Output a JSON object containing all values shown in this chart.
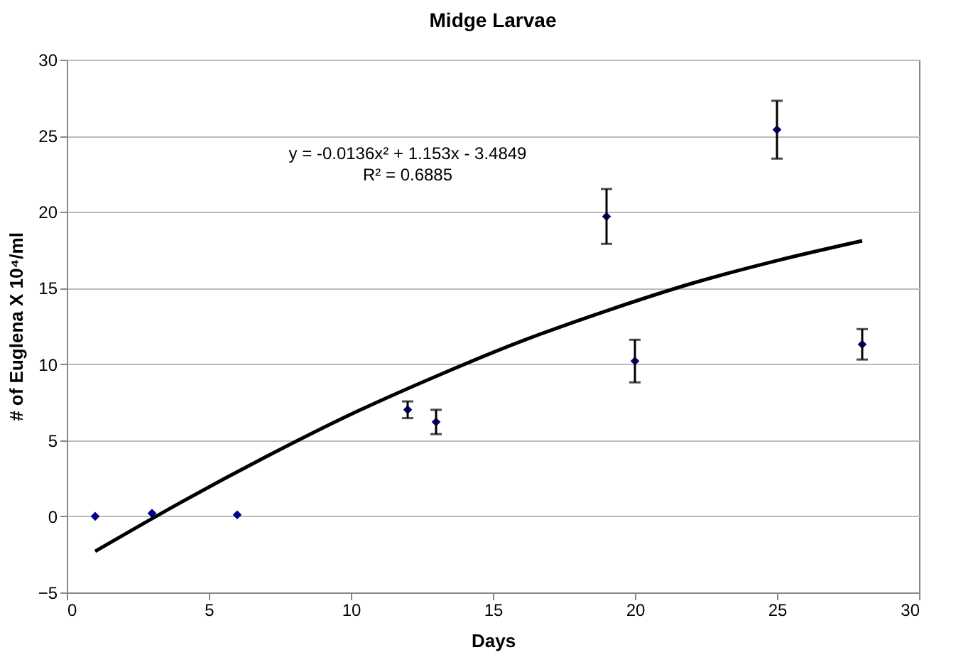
{
  "chart_data": {
    "type": "scatter",
    "title": "Midge Larvae",
    "xlabel": "Days",
    "ylabel": "# of Euglena X 10⁴/ml",
    "x": [
      1,
      3,
      6,
      12,
      13,
      19,
      20,
      25,
      28
    ],
    "series": [
      {
        "color": "#00008b",
        "marker": "diamond",
        "values": [
          0,
          0.2,
          0.1,
          7.0,
          6.2,
          19.7,
          10.2,
          25.4,
          11.3
        ],
        "errors": [
          null,
          null,
          null,
          0.55,
          0.8,
          1.8,
          1.4,
          1.9,
          1.0
        ]
      },
      {
        "type": "line",
        "color": "#000000",
        "x": [
          1,
          4,
          7,
          10,
          13,
          16,
          19,
          22,
          25,
          28
        ],
        "values": [
          -2.3,
          0.9,
          3.9,
          6.7,
          9.2,
          11.5,
          13.5,
          15.3,
          16.8,
          18.1
        ]
      }
    ],
    "annotations": [
      "y = -0.0136x² + 1.153x - 3.4849",
      "R² = 0.6885"
    ],
    "xlim": [
      0,
      30
    ],
    "xticks": [
      0,
      5,
      10,
      15,
      20,
      25,
      30
    ],
    "ylim": [
      -5,
      30
    ],
    "yticks": [
      -5,
      0,
      5,
      10,
      15,
      20,
      25,
      30
    ],
    "grid": "y"
  }
}
